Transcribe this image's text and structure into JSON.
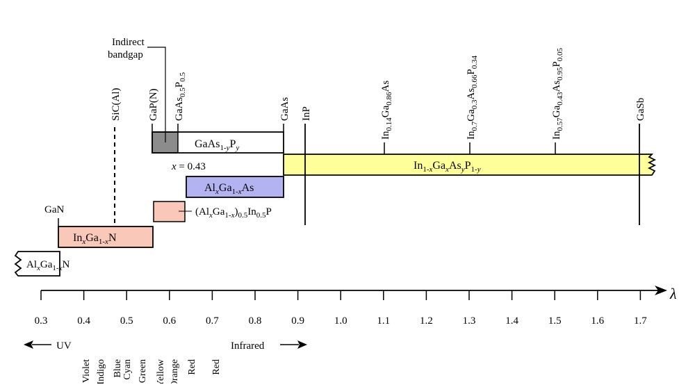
{
  "axis": {
    "symbol": "λ",
    "ticks": [
      "0.3",
      "0.4",
      "0.5",
      "0.6",
      "0.7",
      "0.8",
      "0.9",
      "1.0",
      "1.1",
      "1.2",
      "1.3",
      "1.4",
      "1.5",
      "1.6",
      "1.7"
    ],
    "uv_label": "UV",
    "infrared_label": "Infrared",
    "colors": [
      "Violet",
      "Indigo",
      "Blue",
      "Cyan",
      "Green",
      "Yellow",
      "Orange",
      "Red",
      "Red"
    ]
  },
  "materials": {
    "sic": "SiC(Al)",
    "gapn": "GaP(N)",
    "gaasp_base": "GaAs",
    "gaasp_s1": "0.5",
    "gaasp_p": "P",
    "gaasp_s2": "0.5",
    "gaas": "GaAs",
    "inp": "InP",
    "ingaas_in": "In",
    "ingaas_s1": "0.14",
    "ingaas_ga": "Ga",
    "ingaas_s2": "0.86",
    "ingaas_as": "As",
    "q1_in": "In",
    "q1_s1": "0.7",
    "q1_ga": "Ga",
    "q1_s2": "0.3",
    "q1_as": "As",
    "q1_s3": "0.66",
    "q1_p": "P",
    "q1_s4": "0.34",
    "q2_in": "In",
    "q2_s1": "0.57",
    "q2_ga": "Ga",
    "q2_s2": "0.43",
    "q2_as": "As",
    "q2_s3": "0.95",
    "q2_p": "P",
    "q2_s4": "0.05",
    "gasb": "GaSb",
    "gan": "GaN",
    "indirect_line1": "Indirect",
    "indirect_line2": "bandgap",
    "x_label": "x",
    "x_value": " = 0.43"
  },
  "bars": {
    "gaasp_b1": "GaAs",
    "gaasp_b2": "1-",
    "gaasp_b3": "y",
    "gaasp_b4": "P",
    "gaasp_b5": "y",
    "ingaasp_1": "In",
    "ingaasp_2": "1-",
    "ingaasp_3": "x",
    "ingaasp_4": "Ga",
    "ingaasp_5": "x",
    "ingaasp_6": "As",
    "ingaasp_7": "y",
    "ingaasp_8": "P",
    "ingaasp_9": "1-",
    "ingaasp_10": "y",
    "algaas_1": "Al",
    "algaas_2": "x",
    "algaas_3": "Ga",
    "algaas_4": "1-",
    "algaas_5": "x",
    "algaas_6": "As",
    "algainp_1": "(Al",
    "algainp_2": "x",
    "algainp_3": "Ga",
    "algainp_4": "1-",
    "algainp_5": "x",
    "algainp_6": ")",
    "algainp_7": "0.5",
    "algainp_8": "In",
    "algainp_9": "0.5",
    "algainp_10": "P",
    "ingan_1": "In",
    "ingan_2": "x",
    "ingan_3": "Ga",
    "ingan_4": "1-",
    "ingan_5": "x",
    "ingan_6": "N",
    "algan_1": "Al",
    "algan_2": "x",
    "algan_3": "Ga",
    "algan_4": "1-",
    "algan_5": "x",
    "algan_6": "N"
  },
  "colors": {
    "yellow": "#ffff99",
    "blue": "#b3b3f2",
    "pink": "#f9c8b8",
    "gray": "#8c8c8c"
  }
}
